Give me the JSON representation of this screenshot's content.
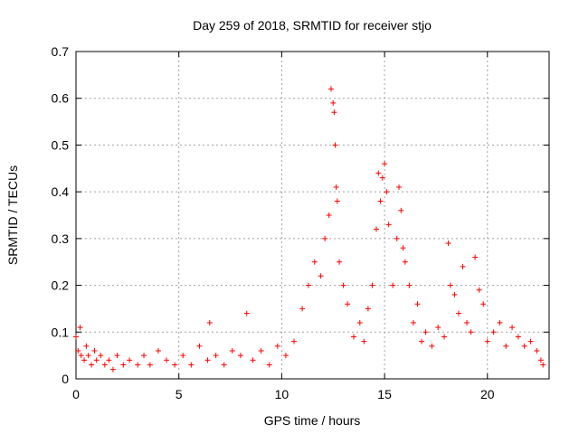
{
  "chart_data": {
    "type": "scatter",
    "title": "Day 259 of 2018, SRMTID for receiver stjo",
    "xlabel": "GPS time / hours",
    "ylabel": "SRMTID / TECUs",
    "xlim": [
      0,
      23
    ],
    "ylim": [
      0,
      0.7
    ],
    "xticks": [
      0,
      5,
      10,
      15,
      20
    ],
    "xtick_labels": [
      "0",
      "5",
      "10",
      "15",
      "20"
    ],
    "yticks": [
      0,
      0.1,
      0.2,
      0.3,
      0.4,
      0.5,
      0.6,
      0.7
    ],
    "ytick_labels": [
      "0",
      "0.1",
      "0.2",
      "0.3",
      "0.4",
      "0.5",
      "0.6",
      "0.7"
    ],
    "grid": true,
    "marker": "+",
    "color": "#ff0000",
    "series": [
      {
        "name": "stjo",
        "x": [
          0.0,
          0.1,
          0.2,
          0.25,
          0.4,
          0.5,
          0.6,
          0.75,
          0.9,
          1.0,
          1.2,
          1.4,
          1.6,
          1.8,
          2.0,
          2.3,
          2.6,
          3.0,
          3.3,
          3.6,
          4.0,
          4.4,
          4.8,
          5.2,
          5.6,
          6.0,
          6.4,
          6.5,
          6.8,
          7.2,
          7.6,
          8.0,
          8.3,
          8.6,
          9.0,
          9.4,
          9.8,
          10.2,
          10.6,
          11.0,
          11.3,
          11.6,
          11.9,
          12.1,
          12.3,
          12.4,
          12.5,
          12.55,
          12.6,
          12.65,
          12.7,
          12.8,
          13.0,
          13.2,
          13.5,
          13.8,
          14.0,
          14.2,
          14.4,
          14.6,
          14.7,
          14.8,
          14.9,
          15.0,
          15.1,
          15.2,
          15.4,
          15.6,
          15.7,
          15.8,
          15.9,
          16.0,
          16.2,
          16.4,
          16.6,
          16.8,
          17.0,
          17.3,
          17.6,
          17.9,
          18.1,
          18.2,
          18.4,
          18.6,
          18.8,
          19.0,
          19.2,
          19.4,
          19.6,
          19.8,
          20.0,
          20.3,
          20.6,
          20.9,
          21.2,
          21.5,
          21.8,
          22.1,
          22.4,
          22.6,
          22.7
        ],
        "y": [
          0.09,
          0.06,
          0.11,
          0.05,
          0.04,
          0.07,
          0.05,
          0.03,
          0.06,
          0.04,
          0.05,
          0.03,
          0.04,
          0.02,
          0.05,
          0.03,
          0.04,
          0.03,
          0.05,
          0.03,
          0.06,
          0.04,
          0.03,
          0.05,
          0.03,
          0.07,
          0.04,
          0.12,
          0.05,
          0.03,
          0.06,
          0.05,
          0.14,
          0.04,
          0.06,
          0.03,
          0.07,
          0.05,
          0.08,
          0.15,
          0.2,
          0.25,
          0.22,
          0.3,
          0.35,
          0.62,
          0.59,
          0.57,
          0.5,
          0.41,
          0.38,
          0.25,
          0.2,
          0.16,
          0.09,
          0.12,
          0.08,
          0.15,
          0.2,
          0.32,
          0.44,
          0.38,
          0.43,
          0.46,
          0.4,
          0.33,
          0.2,
          0.3,
          0.41,
          0.36,
          0.28,
          0.25,
          0.2,
          0.12,
          0.16,
          0.08,
          0.1,
          0.07,
          0.11,
          0.09,
          0.29,
          0.2,
          0.18,
          0.14,
          0.24,
          0.12,
          0.1,
          0.26,
          0.19,
          0.16,
          0.08,
          0.1,
          0.12,
          0.07,
          0.11,
          0.09,
          0.07,
          0.08,
          0.06,
          0.04,
          0.03
        ]
      }
    ]
  }
}
